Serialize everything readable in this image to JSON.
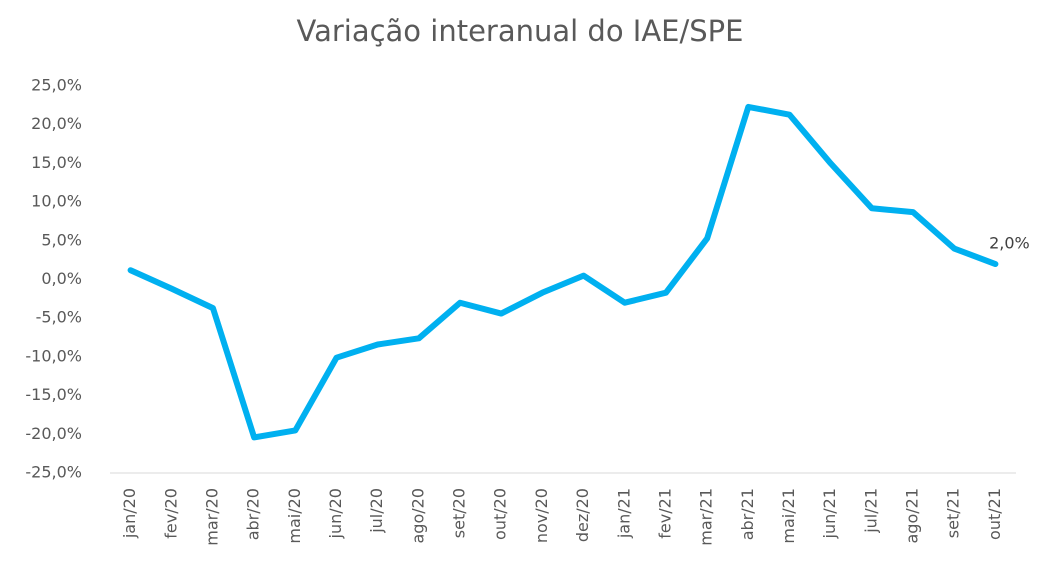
{
  "chart_data": {
    "type": "line",
    "title": "Variação interanual do IAE/SPE",
    "categories": [
      "jan/20",
      "fev/20",
      "mar/20",
      "abr/20",
      "mai/20",
      "jun/20",
      "jul/20",
      "ago/20",
      "set/20",
      "out/20",
      "nov/20",
      "dez/20",
      "jan/21",
      "fev/21",
      "mar/21",
      "abr/21",
      "mai/21",
      "jun/21",
      "jul/21",
      "ago/21",
      "set/21",
      "out/21"
    ],
    "series": [
      {
        "color": "#00b0f0",
        "values": [
          1.2,
          -1.2,
          -3.7,
          -20.4,
          -19.5,
          -10.1,
          -8.4,
          -7.6,
          -3.0,
          -4.4,
          -1.7,
          0.5,
          -3.0,
          -1.7,
          5.3,
          22.3,
          21.3,
          15.0,
          9.2,
          8.7,
          4.0,
          2.0
        ],
        "value_labels": [
          null,
          null,
          null,
          null,
          null,
          null,
          null,
          null,
          null,
          null,
          null,
          null,
          null,
          null,
          null,
          null,
          null,
          null,
          null,
          null,
          null,
          "2,0%"
        ]
      }
    ],
    "ylim": [
      -25,
      25
    ],
    "yticks": [
      {
        "value": -25,
        "label": "-25,0%"
      },
      {
        "value": -20,
        "label": "-20,0%"
      },
      {
        "value": -15,
        "label": "-15,0%"
      },
      {
        "value": -10,
        "label": "-10,0%"
      },
      {
        "value": -5,
        "label": "-5,0%"
      },
      {
        "value": 0,
        "label": "0,0%"
      },
      {
        "value": 5,
        "label": "5,0%"
      },
      {
        "value": 10,
        "label": "10,0%"
      },
      {
        "value": 15,
        "label": "15,0%"
      },
      {
        "value": 20,
        "label": "20,0%"
      },
      {
        "value": 25,
        "label": "25,0%"
      }
    ],
    "grid": false
  }
}
